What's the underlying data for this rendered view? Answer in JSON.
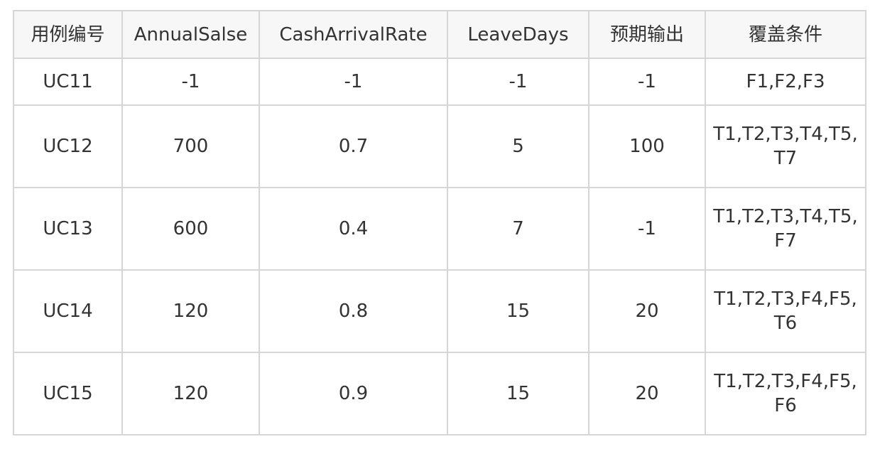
{
  "table": {
    "headers": [
      "用例编号",
      "AnnualSalse",
      "CashArrivalRate",
      "LeaveDays",
      "预期输出",
      "覆盖条件"
    ],
    "rows": [
      {
        "id": "UC11",
        "annual_salse": "-1",
        "cash_arrival_rate": "-1",
        "leave_days": "-1",
        "expected_output": "-1",
        "coverage": "F1,F2,F3"
      },
      {
        "id": "UC12",
        "annual_salse": "700",
        "cash_arrival_rate": "0.7",
        "leave_days": "5",
        "expected_output": "100",
        "coverage": "T1,T2,T3,T4,T5,T7"
      },
      {
        "id": "UC13",
        "annual_salse": "600",
        "cash_arrival_rate": "0.4",
        "leave_days": "7",
        "expected_output": "-1",
        "coverage": "T1,T2,T3,T4,T5,F7"
      },
      {
        "id": "UC14",
        "annual_salse": "120",
        "cash_arrival_rate": "0.8",
        "leave_days": "15",
        "expected_output": "20",
        "coverage": "T1,T2,T3,F4,F5,T6"
      },
      {
        "id": "UC15",
        "annual_salse": "120",
        "cash_arrival_rate": "0.9",
        "leave_days": "15",
        "expected_output": "20",
        "coverage": "T1,T2,T3,F4,F5,F6"
      }
    ]
  }
}
